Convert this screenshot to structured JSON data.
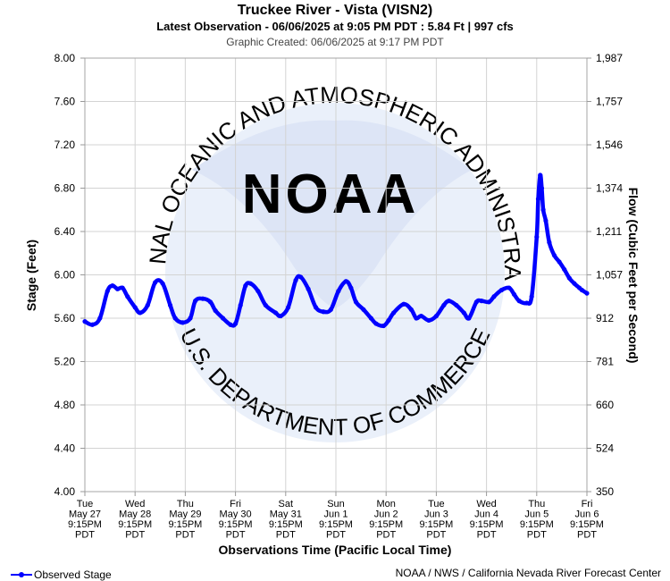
{
  "header": {
    "title": "Truckee River - Vista (VISN2)",
    "subtitle": "Latest Observation - 06/06/2025 at 9:05 PM PDT : 5.84 Ft | 997 cfs",
    "created": "Graphic Created: 06/06/2025 at 9:17 PM PDT"
  },
  "watermark": {
    "logo_text": "NOAA",
    "ring_top": "NATIONAL OCEANIC AND ATMOSPHERIC ADMINISTRATION",
    "ring_bottom": "U.S. DEPARTMENT OF COMMERCE"
  },
  "legend": {
    "label": "Observed Stage"
  },
  "footer": {
    "credit": "NOAA / NWS / California Nevada River Forecast Center"
  },
  "colors": {
    "series": "#0000ff",
    "grid": "#d3d3d3",
    "watermark": "#e8eef8"
  },
  "chart_data": {
    "type": "line",
    "title": "Truckee River - Vista (VISN2)",
    "xlabel": "Observations Time (Pacific Local Time)",
    "ylabel": "Stage (Feet)",
    "y2label": "Flow (Cubic Feet per Second)",
    "ylim": [
      4.0,
      8.0
    ],
    "y_ticks": [
      "4.00",
      "4.40",
      "4.80",
      "5.20",
      "5.60",
      "6.00",
      "6.40",
      "6.80",
      "7.20",
      "7.60",
      "8.00"
    ],
    "y_tick_values": [
      4.0,
      4.4,
      4.8,
      5.2,
      5.6,
      6.0,
      6.4,
      6.8,
      7.2,
      7.6,
      8.0
    ],
    "y2_ticks": [
      "350",
      "524",
      "660",
      "781",
      "912",
      "1,057",
      "1,211",
      "1,374",
      "1,546",
      "1,757",
      "1,987"
    ],
    "x_range_days": [
      0,
      10
    ],
    "x_ticks": [
      {
        "day": "Tue",
        "date": "May 27",
        "time": "9:15PM",
        "tz": "PDT"
      },
      {
        "day": "Wed",
        "date": "May 28",
        "time": "9:15PM",
        "tz": "PDT"
      },
      {
        "day": "Thu",
        "date": "May 29",
        "time": "9:15PM",
        "tz": "PDT"
      },
      {
        "day": "Fri",
        "date": "May 30",
        "time": "9:15PM",
        "tz": "PDT"
      },
      {
        "day": "Sat",
        "date": "May 31",
        "time": "9:15PM",
        "tz": "PDT"
      },
      {
        "day": "Sun",
        "date": "Jun 1",
        "time": "9:15PM",
        "tz": "PDT"
      },
      {
        "day": "Mon",
        "date": "Jun 2",
        "time": "9:15PM",
        "tz": "PDT"
      },
      {
        "day": "Tue",
        "date": "Jun 3",
        "time": "9:15PM",
        "tz": "PDT"
      },
      {
        "day": "Wed",
        "date": "Jun 4",
        "time": "9:15PM",
        "tz": "PDT"
      },
      {
        "day": "Thu",
        "date": "Jun 5",
        "time": "9:15PM",
        "tz": "PDT"
      },
      {
        "day": "Fri",
        "date": "Jun 6",
        "time": "9:15PM",
        "tz": "PDT"
      }
    ],
    "grid": true,
    "legend_position": "bottom-left",
    "series": [
      {
        "name": "Observed Stage",
        "x": [
          0,
          0.15,
          0.3,
          0.45,
          0.55,
          0.65,
          0.75,
          0.85,
          1.0,
          1.1,
          1.25,
          1.4,
          1.55,
          1.7,
          1.8,
          1.95,
          2.1,
          2.2,
          2.35,
          2.5,
          2.6,
          2.75,
          2.9,
          3.0,
          3.1,
          3.2,
          3.3,
          3.45,
          3.6,
          3.8,
          3.9,
          4.05,
          4.2,
          4.3,
          4.45,
          4.6,
          4.75,
          4.9,
          5.05,
          5.2,
          5.3,
          5.4,
          5.55,
          5.7,
          5.8,
          5.95,
          6.05,
          6.15,
          6.35,
          6.5,
          6.6,
          6.7,
          6.85,
          7.0,
          7.15,
          7.25,
          7.4,
          7.55,
          7.65,
          7.8,
          7.9,
          8.05,
          8.15,
          8.3,
          8.45,
          8.55,
          8.65,
          8.8,
          8.9,
          9.0,
          9.03,
          9.07,
          9.1,
          9.13,
          9.18,
          9.25,
          9.35,
          9.45,
          9.55,
          9.65,
          9.75,
          9.85,
          9.9,
          10.0
        ],
        "values": [
          5.57,
          5.54,
          5.6,
          5.85,
          5.9,
          5.87,
          5.88,
          5.8,
          5.7,
          5.65,
          5.72,
          5.93,
          5.92,
          5.72,
          5.6,
          5.56,
          5.6,
          5.76,
          5.78,
          5.75,
          5.67,
          5.6,
          5.54,
          5.55,
          5.72,
          5.9,
          5.92,
          5.85,
          5.72,
          5.65,
          5.62,
          5.7,
          5.95,
          5.98,
          5.87,
          5.7,
          5.66,
          5.68,
          5.85,
          5.94,
          5.88,
          5.75,
          5.68,
          5.6,
          5.55,
          5.53,
          5.58,
          5.65,
          5.73,
          5.68,
          5.6,
          5.62,
          5.58,
          5.62,
          5.72,
          5.76,
          5.72,
          5.65,
          5.6,
          5.75,
          5.76,
          5.75,
          5.8,
          5.86,
          5.88,
          5.82,
          5.76,
          5.74,
          5.8,
          6.35,
          6.7,
          6.92,
          6.8,
          6.6,
          6.5,
          6.3,
          6.18,
          6.12,
          6.05,
          5.97,
          5.92,
          5.88,
          5.86,
          5.83
        ]
      }
    ]
  }
}
